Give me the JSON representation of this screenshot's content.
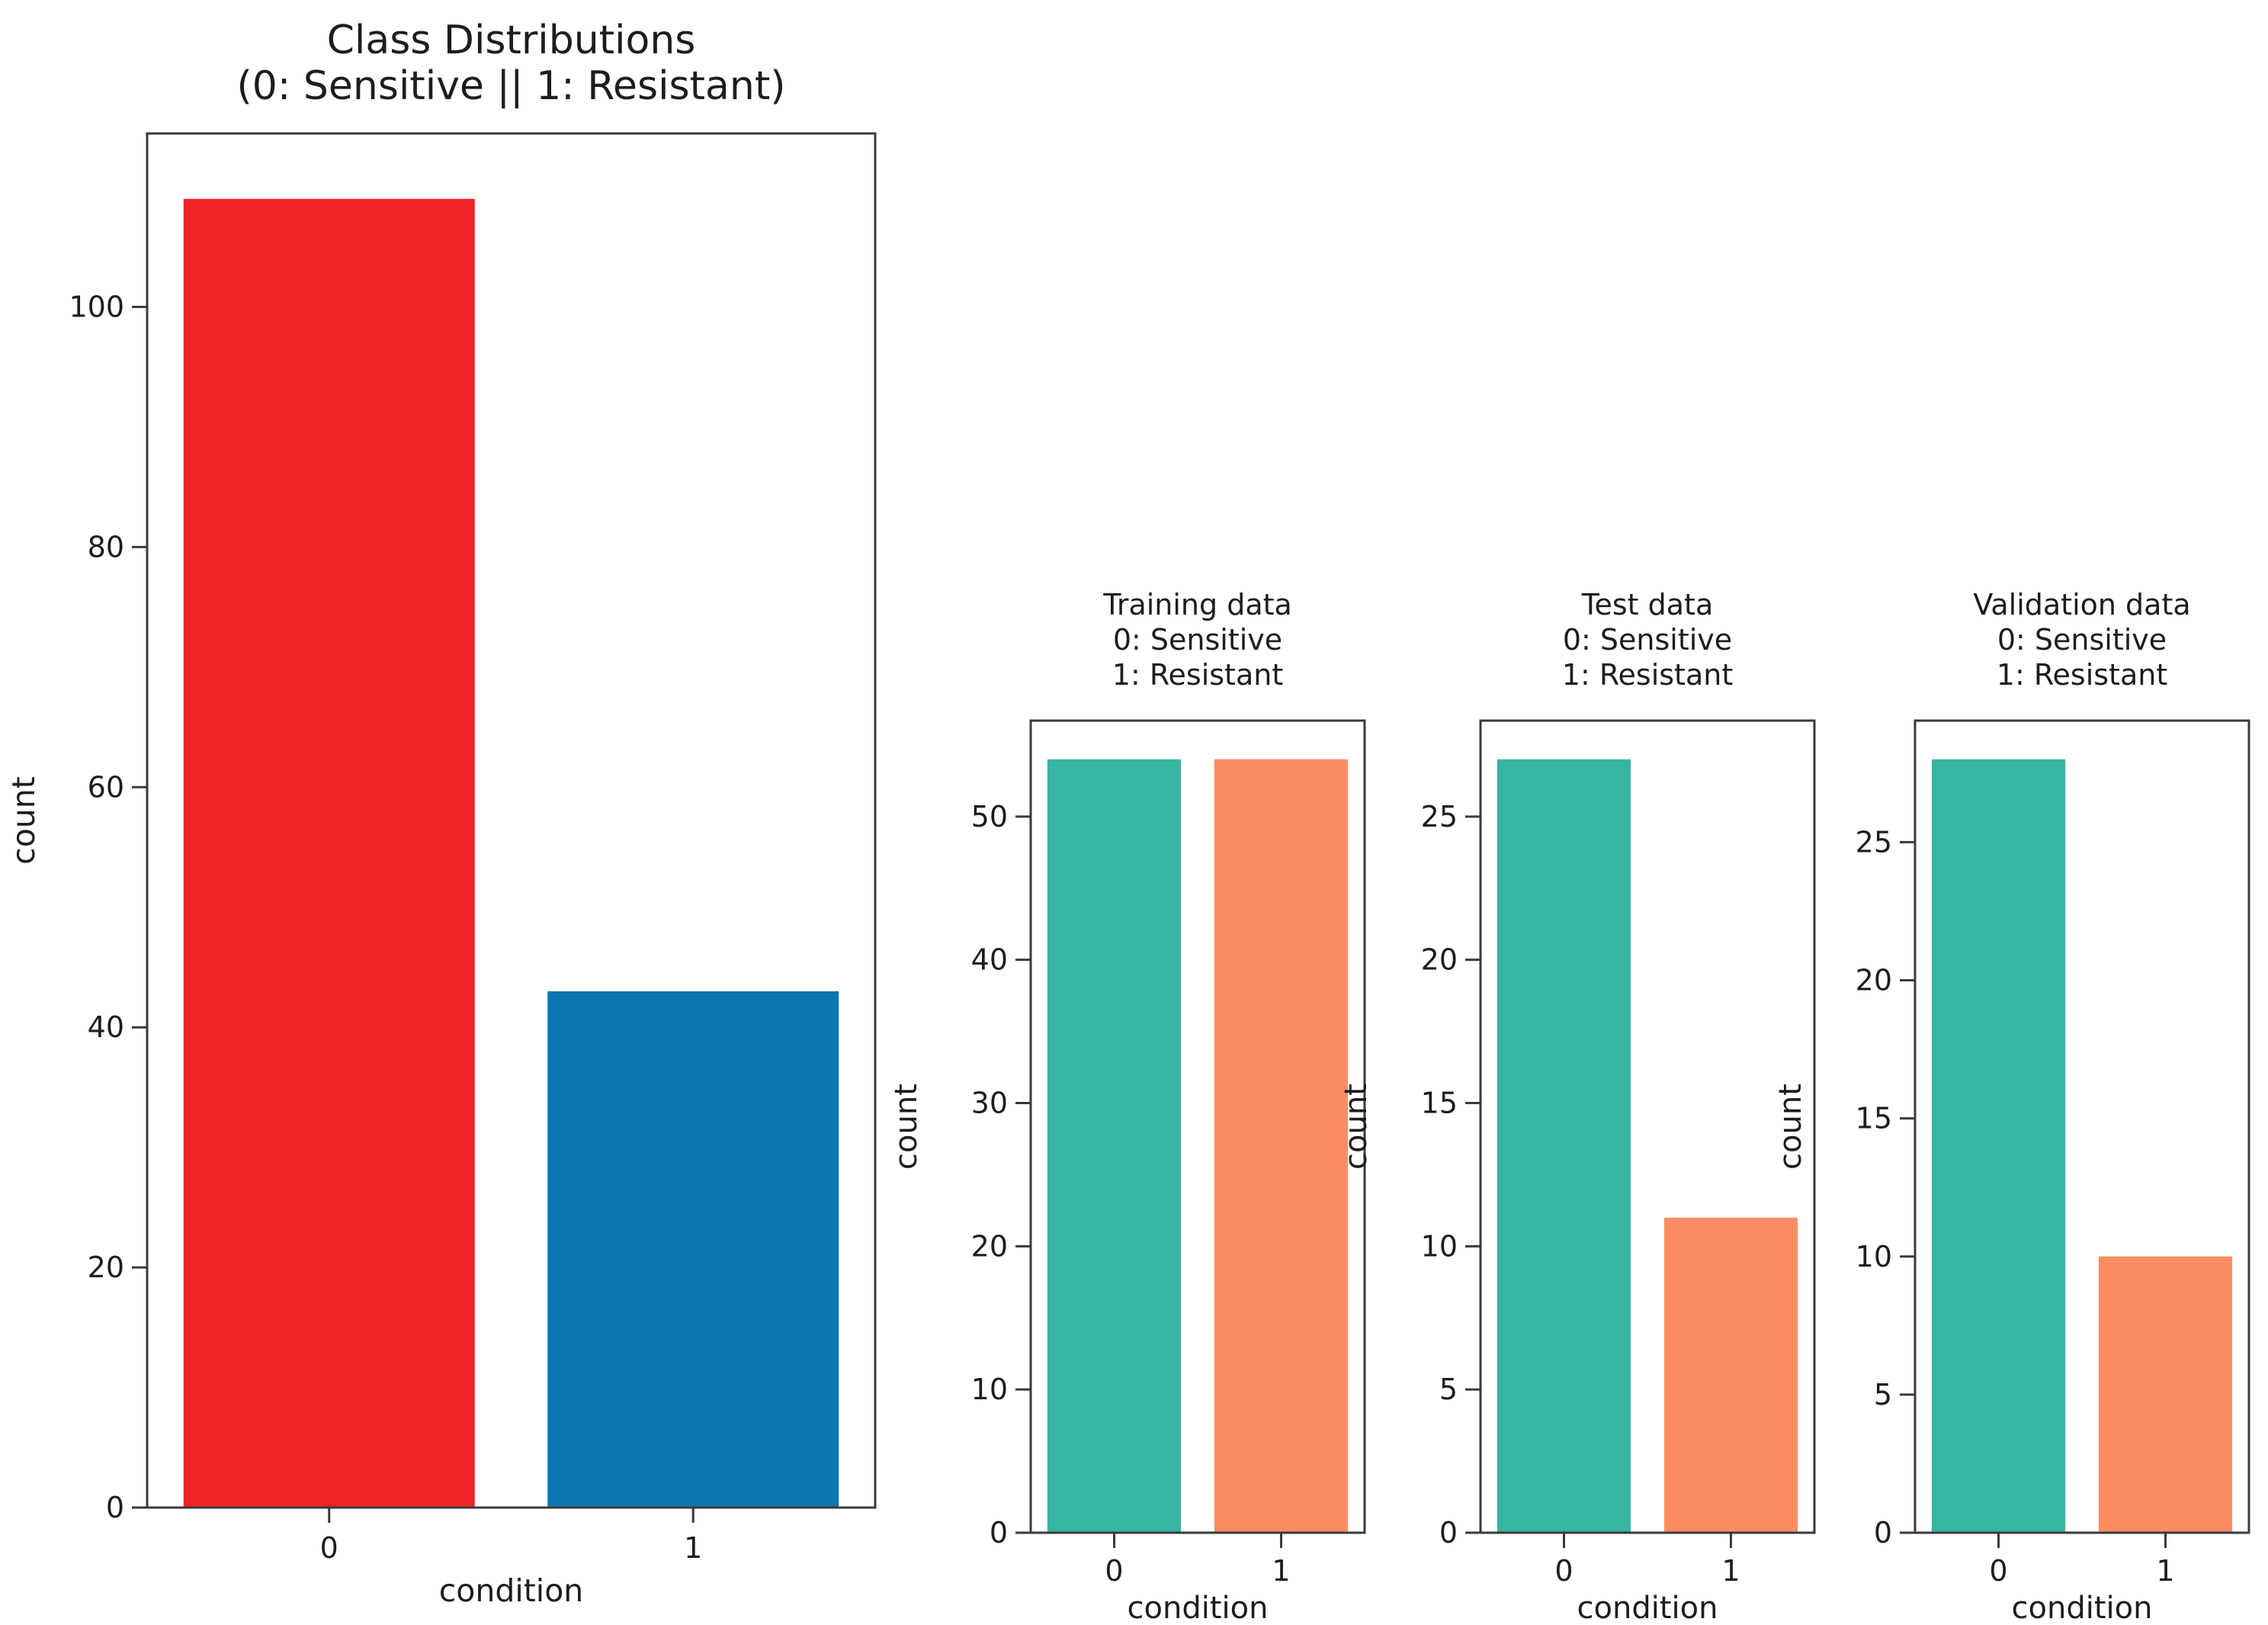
{
  "figure": {
    "background": "#ffffff",
    "description": "Class distribution bar charts for full dataset and train/test/validation splits"
  },
  "chart_data": [
    {
      "id": "class-distributions",
      "type": "bar",
      "title_lines": [
        "Class Distributions",
        "(0: Sensitive || 1: Resistant)"
      ],
      "xlabel": "condition",
      "ylabel": "count",
      "categories": [
        "0",
        "1"
      ],
      "values": [
        109,
        43
      ],
      "bar_colors": [
        "#ed2328",
        "#0e76b1"
      ],
      "yticks": [
        0,
        20,
        40,
        60,
        80,
        100
      ],
      "ylim": [
        0,
        114.45
      ],
      "grid": false,
      "legend": "none"
    },
    {
      "id": "training-data",
      "type": "bar",
      "title_lines": [
        "Training data",
        "0: Sensitive",
        "1: Resistant"
      ],
      "xlabel": "condition",
      "ylabel": "count",
      "categories": [
        "0",
        "1"
      ],
      "values": [
        54,
        54
      ],
      "bar_colors": [
        "#38b5a0",
        "#fc8d63"
      ],
      "yticks": [
        0,
        10,
        20,
        30,
        40,
        50
      ],
      "ylim": [
        0,
        56.7
      ],
      "grid": false,
      "legend": "none"
    },
    {
      "id": "test-data",
      "type": "bar",
      "title_lines": [
        "Test data",
        "0: Sensitive",
        "1: Resistant"
      ],
      "xlabel": "condition",
      "ylabel": "count",
      "categories": [
        "0",
        "1"
      ],
      "values": [
        27,
        11
      ],
      "bar_colors": [
        "#38b5a0",
        "#fc8d63"
      ],
      "yticks": [
        0,
        5,
        10,
        15,
        20,
        25
      ],
      "ylim": [
        0,
        28.35
      ],
      "grid": false,
      "legend": "none"
    },
    {
      "id": "validation-data",
      "type": "bar",
      "title_lines": [
        "Validation data",
        "0: Sensitive",
        "1: Resistant"
      ],
      "xlabel": "condition",
      "ylabel": "count",
      "categories": [
        "0",
        "1"
      ],
      "values": [
        28,
        10
      ],
      "bar_colors": [
        "#38b5a0",
        "#fc8d63"
      ],
      "yticks": [
        0,
        5,
        10,
        15,
        20,
        25
      ],
      "ylim": [
        0,
        29.4
      ],
      "grid": false,
      "legend": "none"
    }
  ]
}
